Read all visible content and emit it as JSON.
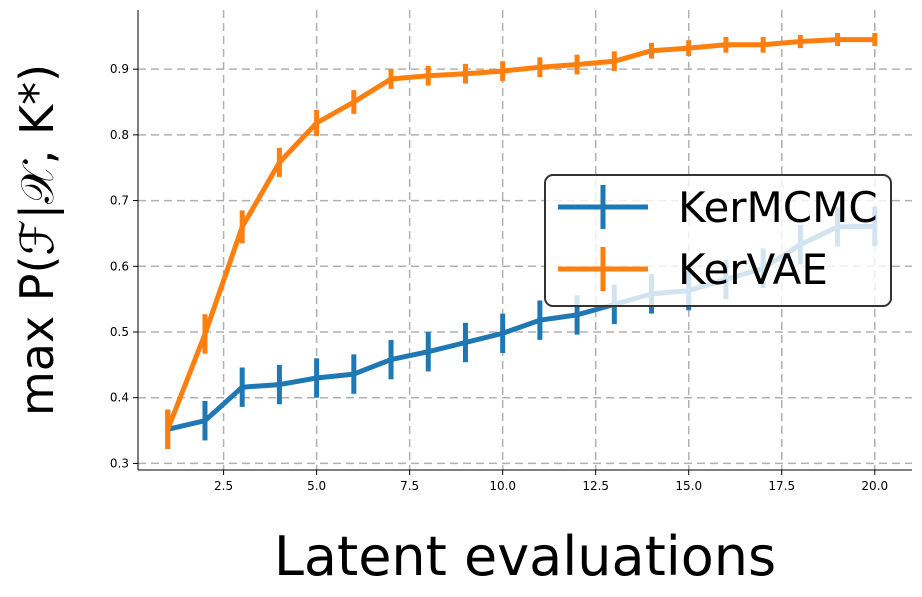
{
  "chart_data": {
    "type": "line",
    "xlabel": "Latent evaluations",
    "ylabel": "max P(ℱ|𝒳, K*)",
    "xlim": [
      0.2,
      21.0
    ],
    "ylim": [
      0.29,
      0.99
    ],
    "xticks": [
      2.5,
      5.0,
      7.5,
      10.0,
      12.5,
      15.0,
      17.5,
      20.0
    ],
    "xtick_labels": [
      "2.5",
      "5.0",
      "7.5",
      "10.0",
      "12.5",
      "15.0",
      "17.5",
      "20.0"
    ],
    "yticks": [
      0.3,
      0.4,
      0.5,
      0.6,
      0.7,
      0.8,
      0.9
    ],
    "ytick_labels": [
      "0.3",
      "0.4",
      "0.5",
      "0.6",
      "0.7",
      "0.8",
      "0.9"
    ],
    "grid": true,
    "legend_position": "center-right",
    "x": [
      1,
      2,
      3,
      4,
      5,
      6,
      7,
      8,
      9,
      10,
      11,
      12,
      13,
      14,
      15,
      16,
      17,
      18,
      19,
      20
    ],
    "series": [
      {
        "name": "KerMCMC",
        "color": "#1f77b4",
        "values": [
          0.352,
          0.365,
          0.416,
          0.42,
          0.43,
          0.436,
          0.458,
          0.47,
          0.484,
          0.498,
          0.518,
          0.526,
          0.542,
          0.558,
          0.563,
          0.58,
          0.597,
          0.633,
          0.66,
          0.661
        ],
        "errors": [
          0.03,
          0.03,
          0.03,
          0.03,
          0.03,
          0.03,
          0.03,
          0.03,
          0.03,
          0.03,
          0.03,
          0.03,
          0.03,
          0.03,
          0.03,
          0.03,
          0.03,
          0.03,
          0.03,
          0.03
        ]
      },
      {
        "name": "KerVAE",
        "color": "#ff7f0e",
        "values": [
          0.352,
          0.497,
          0.66,
          0.758,
          0.818,
          0.85,
          0.885,
          0.89,
          0.893,
          0.897,
          0.903,
          0.907,
          0.912,
          0.928,
          0.932,
          0.937,
          0.937,
          0.942,
          0.945,
          0.945
        ],
        "errors": [
          0.03,
          0.03,
          0.025,
          0.022,
          0.02,
          0.018,
          0.015,
          0.015,
          0.015,
          0.015,
          0.015,
          0.015,
          0.015,
          0.012,
          0.012,
          0.012,
          0.012,
          0.01,
          0.01,
          0.01
        ]
      }
    ]
  }
}
